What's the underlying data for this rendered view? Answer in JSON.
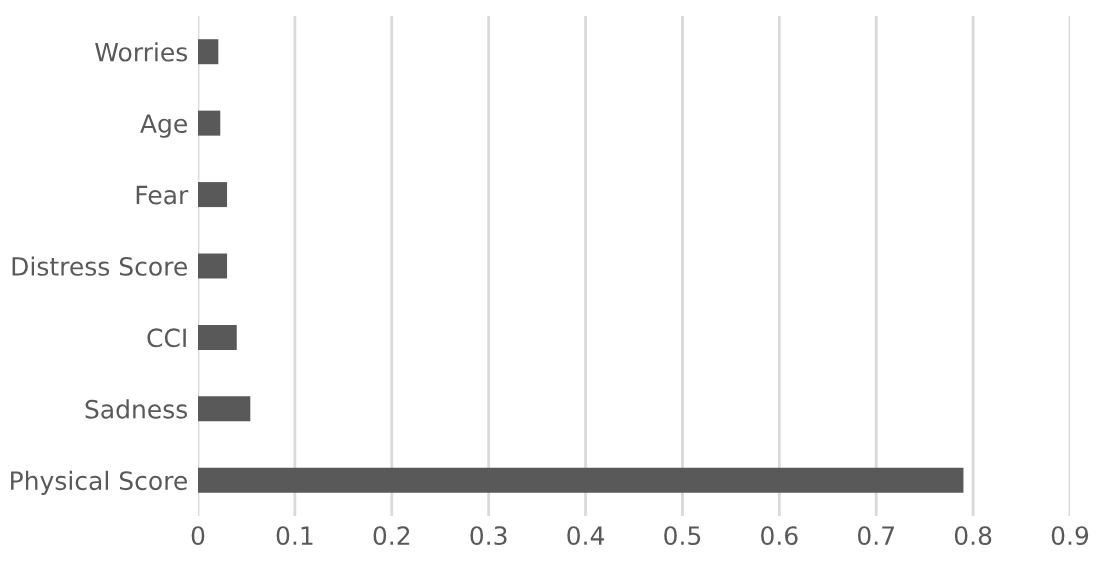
{
  "chart_data": {
    "type": "bar",
    "orientation": "horizontal",
    "categories": [
      "Worries",
      "Age",
      "Fear",
      "Distress Score",
      "CCI",
      "Sadness",
      "Physical Score"
    ],
    "values": [
      0.021,
      0.023,
      0.03,
      0.03,
      0.04,
      0.054,
      0.79
    ],
    "color": "#595959",
    "xlim": [
      0,
      0.9
    ],
    "xticks": [
      0,
      0.1,
      0.2,
      0.3,
      0.4,
      0.5,
      0.6,
      0.7,
      0.8,
      0.9
    ],
    "grid": "x",
    "legend": false
  }
}
